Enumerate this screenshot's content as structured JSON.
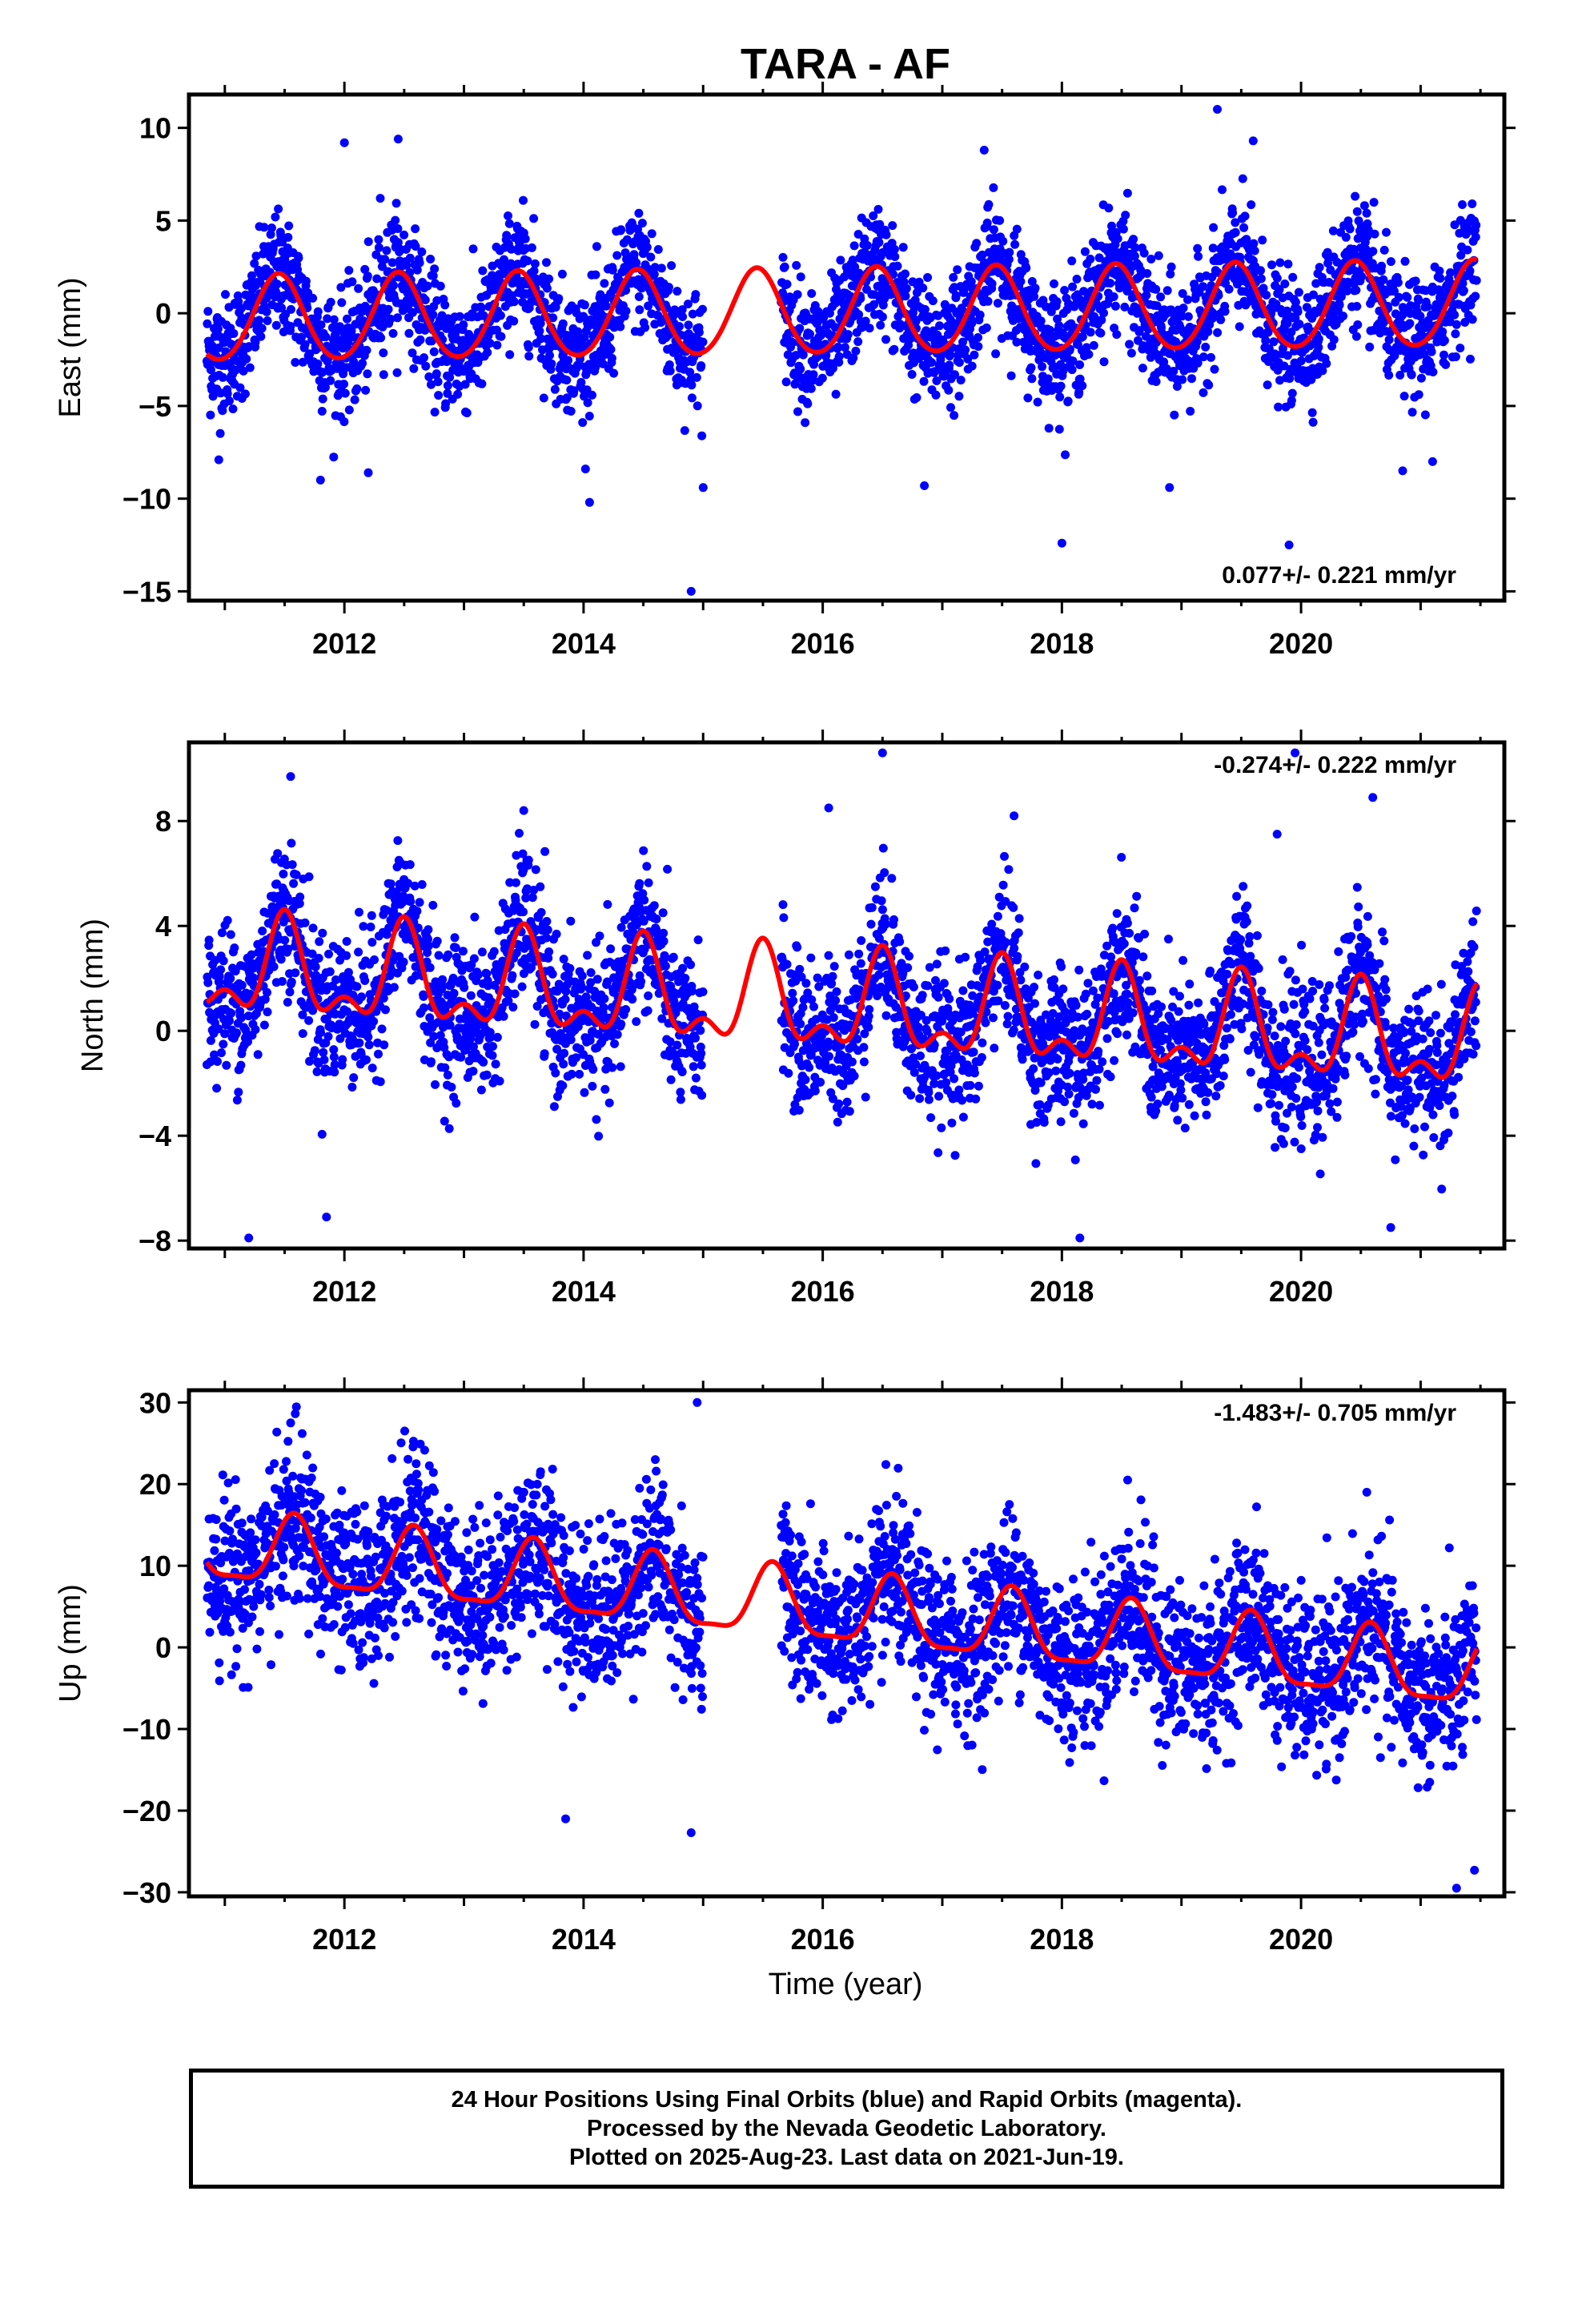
{
  "title": "TARA - AF",
  "xlabel": "Time (year)",
  "colors": {
    "points": "#0000ff",
    "fit": "#ff0000",
    "frame": "#000000"
  },
  "caption": {
    "line1": "24 Hour Positions Using Final Orbits (blue) and Rapid Orbits (magenta).",
    "line2": "Processed by the Nevada Geodetic Laboratory.",
    "line3": "Plotted on 2025-Aug-23. Last data on 2021-Jun-19."
  },
  "chart_data": [
    {
      "type": "scatter",
      "ylabel": "East (mm)",
      "xlim": [
        2010.7,
        2021.7
      ],
      "ylim": [
        -15.5,
        11.8
      ],
      "xticks": [
        2012,
        2014,
        2016,
        2018,
        2020
      ],
      "yticks": [
        10,
        5,
        0,
        -5,
        -10,
        -15
      ],
      "rate": "0.077+/- 0.221 mm/yr",
      "rate_position": "bottom-right",
      "series": [
        {
          "kind": "points",
          "start": 2010.85,
          "end": 2021.47,
          "data_gap": [
            2015.0,
            2015.65
          ],
          "trend_rate": 0.077,
          "annual_amp": 2.2,
          "phase_peak": 0.45,
          "semiannual_amp": 0.3,
          "noise_sd": 1.6,
          "outliers": [
            [
              2012.0,
              9.2
            ],
            [
              2012.45,
              9.4
            ],
            [
              2012.3,
              6.2
            ],
            [
              2017.35,
              8.8
            ],
            [
              2019.3,
              11.0
            ],
            [
              2019.6,
              9.3
            ],
            [
              2018.0,
              -12.4
            ],
            [
              2019.9,
              -12.5
            ],
            [
              2014.9,
              -15.0
            ],
            [
              2014.05,
              -10.2
            ],
            [
              2015.0,
              -9.4
            ],
            [
              2016.85,
              -9.3
            ],
            [
              2018.9,
              -9.4
            ],
            [
              2020.85,
              -8.5
            ],
            [
              2021.1,
              -8.0
            ],
            [
              2010.95,
              -7.9
            ],
            [
              2011.8,
              -9.0
            ],
            [
              2012.2,
              -8.6
            ]
          ]
        },
        {
          "kind": "fit",
          "offset": 0.0,
          "trend_rate": 0.077,
          "annual_amp": 2.3,
          "phase_peak": 0.45,
          "semiannual_amp": 0.2
        }
      ]
    },
    {
      "type": "scatter",
      "ylabel": "North (mm)",
      "xlim": [
        2010.7,
        2021.7
      ],
      "ylim": [
        -8.3,
        11.0
      ],
      "xticks": [
        2012,
        2014,
        2016,
        2018,
        2020
      ],
      "yticks": [
        8,
        4,
        0,
        -4,
        -8
      ],
      "rate": "-0.274+/- 0.222 mm/yr",
      "rate_position": "top-right",
      "series": [
        {
          "kind": "points",
          "start": 2010.85,
          "end": 2021.47,
          "data_gap": [
            2015.0,
            2015.65
          ],
          "trend_rate": -0.274,
          "annual_amp": 1.8,
          "phase_peak": 0.5,
          "semiannual_amp": 0.8,
          "noise_sd": 1.4,
          "outliers": [
            [
              2011.55,
              9.7
            ],
            [
              2013.5,
              8.4
            ],
            [
              2016.5,
              10.6
            ],
            [
              2016.05,
              8.5
            ],
            [
              2017.6,
              8.2
            ],
            [
              2019.8,
              7.5
            ],
            [
              2019.95,
              10.6
            ],
            [
              2020.6,
              8.9
            ],
            [
              2011.2,
              -7.9
            ],
            [
              2011.85,
              -7.1
            ],
            [
              2018.15,
              -7.9
            ],
            [
              2020.75,
              -7.5
            ]
          ]
        },
        {
          "kind": "fit",
          "offset": 0.9,
          "trend_rate": -0.274,
          "annual_amp": 1.6,
          "phase_peak": 0.5,
          "semiannual_amp": 0.9
        }
      ]
    },
    {
      "type": "scatter",
      "ylabel": "Up (mm)",
      "xlim": [
        2010.7,
        2021.7
      ],
      "ylim": [
        -30.5,
        31.5
      ],
      "xticks": [
        2012,
        2014,
        2016,
        2018,
        2020
      ],
      "yticks": [
        30,
        20,
        10,
        0,
        -10,
        -20,
        -30
      ],
      "rate": "-1.483+/- 0.705 mm/yr",
      "rate_position": "top-right",
      "series": [
        {
          "kind": "points",
          "start": 2010.85,
          "end": 2021.47,
          "data_gap": [
            2015.0,
            2015.65
          ],
          "trend_rate": -1.483,
          "annual_amp": 3.8,
          "phase_peak": 0.58,
          "semiannual_amp": 1.0,
          "noise_sd": 5.0,
          "outliers": [
            [
              2014.95,
              30.0
            ],
            [
              2011.55,
              27.5
            ],
            [
              2012.6,
              22.5
            ],
            [
              2014.6,
              23.0
            ],
            [
              2018.55,
              20.5
            ],
            [
              2020.55,
              19.0
            ],
            [
              2014.9,
              -22.7
            ],
            [
              2013.85,
              -21.0
            ],
            [
              2021.3,
              -29.5
            ],
            [
              2021.45,
              -27.3
            ]
          ]
        },
        {
          "kind": "fit",
          "offset": 4.5,
          "trend_rate": -1.483,
          "annual_amp": 4.2,
          "phase_peak": 0.58,
          "semiannual_amp": 1.2
        }
      ]
    }
  ]
}
